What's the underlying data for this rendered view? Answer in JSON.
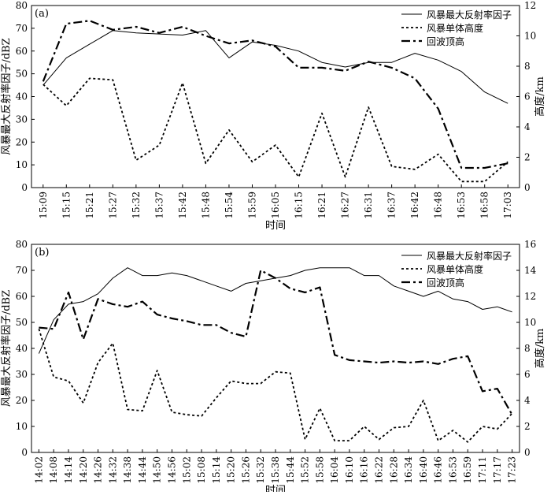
{
  "chart_data": [
    {
      "type": "line",
      "panel_label": "(a)",
      "xlabel": "时间",
      "ylabel": "风暴最大反射率因子/dBZ",
      "y2label": "高度/km",
      "ylim": [
        0,
        80
      ],
      "y_ticks": [
        0,
        10,
        20,
        30,
        40,
        50,
        60,
        70,
        80
      ],
      "y2lim": [
        0,
        12
      ],
      "y2_ticks": [
        0,
        2,
        4,
        6,
        8,
        10,
        12
      ],
      "legend_position": "top-right",
      "categories": [
        "15:09",
        "15:15",
        "15:21",
        "15:27",
        "15:32",
        "15:37",
        "15:42",
        "15:48",
        "15:54",
        "15:59",
        "16:05",
        "16:15",
        "16:21",
        "16:27",
        "16:31",
        "16:37",
        "16:42",
        "16:48",
        "16:53",
        "16:58",
        "17:03"
      ],
      "series": [
        {
          "name": "风暴最大反射率因子",
          "axis": "left",
          "style": "solid",
          "values": [
            45,
            57,
            63,
            69,
            68,
            67.5,
            67,
            69,
            57,
            64,
            62.5,
            60,
            55,
            53,
            55,
            55,
            59,
            56,
            51,
            42,
            37
          ]
        },
        {
          "name": "风暴单体高度",
          "axis": "right",
          "style": "dotted",
          "values": [
            6.8,
            5.4,
            7.2,
            7.1,
            1.8,
            2.8,
            6.9,
            1.6,
            3.8,
            1.7,
            2.8,
            0.7,
            4.9,
            0.7,
            5.3,
            1.4,
            1.2,
            2.2,
            0.4,
            0.4,
            1.7
          ]
        },
        {
          "name": "回波顶高",
          "axis": "right",
          "style": "dashdot",
          "values": [
            7.0,
            10.8,
            11.0,
            10.4,
            10.6,
            10.2,
            10.6,
            10.0,
            9.5,
            9.7,
            9.3,
            7.9,
            7.9,
            7.7,
            8.3,
            7.9,
            7.2,
            5.2,
            1.3,
            1.3,
            1.6
          ]
        }
      ]
    },
    {
      "type": "line",
      "panel_label": "(b)",
      "xlabel": "时间",
      "ylabel": "风暴最大反射率因子/dBZ",
      "y2label": "高度/km",
      "ylim": [
        0,
        80
      ],
      "y_ticks": [
        0,
        10,
        20,
        30,
        40,
        50,
        60,
        70,
        80
      ],
      "y2lim": [
        0,
        16
      ],
      "y2_ticks": [
        0,
        2,
        4,
        6,
        8,
        10,
        12,
        14,
        16
      ],
      "legend_position": "top-right",
      "categories": [
        "14:02",
        "14:08",
        "14:14",
        "14:20",
        "14:26",
        "14:32",
        "14:38",
        "14:44",
        "14:50",
        "14:56",
        "15:02",
        "15:08",
        "15:14",
        "15:20",
        "15:26",
        "15:32",
        "15:38",
        "15:44",
        "15:52",
        "15:58",
        "16:04",
        "16:10",
        "16:16",
        "16:22",
        "16:28",
        "16:34",
        "16:40",
        "16:46",
        "16:53",
        "16:59",
        "17:11",
        "17:17",
        "17:23"
      ],
      "series": [
        {
          "name": "风暴最大反射率因子",
          "axis": "left",
          "style": "solid",
          "values": [
            38,
            51,
            57,
            58,
            61,
            67,
            71,
            68,
            68,
            69,
            68,
            66,
            64,
            62,
            65,
            66,
            67,
            68,
            70,
            71,
            71,
            71,
            68,
            68,
            64,
            62,
            60,
            62,
            59,
            58,
            55,
            56,
            54
          ]
        },
        {
          "name": "风暴单体高度",
          "axis": "right",
          "style": "dotted",
          "values": [
            9.5,
            5.8,
            5.5,
            3.8,
            6.9,
            8.4,
            3.3,
            3.2,
            6.3,
            3.1,
            2.9,
            2.8,
            4.2,
            5.5,
            5.3,
            5.3,
            6.2,
            6.1,
            1.0,
            3.4,
            0.9,
            0.9,
            2.0,
            1.0,
            1.9,
            2.0,
            4.0,
            0.9,
            1.7,
            0.8,
            2.0,
            1.8,
            3.0
          ]
        },
        {
          "name": "回波顶高",
          "axis": "right",
          "style": "dashdot",
          "values": [
            9.6,
            9.5,
            12.3,
            8.7,
            11.8,
            11.4,
            11.2,
            11.6,
            10.6,
            10.3,
            10.1,
            9.8,
            9.8,
            9.2,
            8.9,
            14.0,
            13.4,
            12.6,
            12.3,
            12.7,
            7.5,
            7.1,
            7.0,
            6.9,
            7.0,
            6.9,
            7.0,
            6.8,
            7.2,
            7.4,
            4.7,
            4.9,
            2.9
          ]
        }
      ]
    }
  ]
}
